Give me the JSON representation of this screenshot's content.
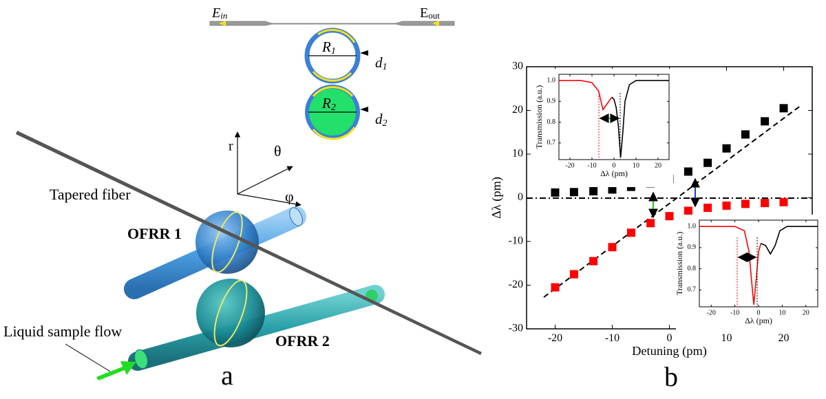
{
  "diagram": {
    "e_in": {
      "main": "E",
      "sub": "in"
    },
    "e_out": {
      "main": "E",
      "sub": "out"
    },
    "r1": {
      "main": "R",
      "sub": "1"
    },
    "d1": {
      "main": "d",
      "sub": "1"
    },
    "r2": {
      "main": "R",
      "sub": "2"
    },
    "d2": {
      "main": "d",
      "sub": "2"
    },
    "axis_r": "r",
    "axis_theta": "θ",
    "axis_phi": "φ",
    "tapered_fiber": "Tapered fiber",
    "ofrr1": "OFRR 1",
    "ofrr2": "OFRR 2",
    "liquid_flow": "Liquid sample flow",
    "panel_a": "a",
    "panel_b": "b"
  },
  "chart_data": [
    {
      "type": "scatter",
      "xlabel": "Detuning (pm)",
      "ylabel": "Δλ (pm)",
      "x": [
        -20,
        -16.7,
        -13.3,
        -10,
        -6.7,
        -3.3,
        0,
        3.3,
        6.7,
        10,
        13.3,
        16.7,
        20
      ],
      "series": [
        {
          "color": "#000000",
          "values": [
            1.2,
            1.3,
            1.5,
            1.9,
            2.5,
            3.3,
            4.3,
            6,
            8,
            11.3,
            14.5,
            17.5,
            20.5
          ]
        },
        {
          "color": "#ff0000",
          "values": [
            -20.5,
            -17.5,
            -14.5,
            -11.3,
            -8,
            -5.8,
            -4.2,
            -3,
            -2.3,
            -1.8,
            -1.4,
            -1.2,
            -1.0
          ]
        }
      ],
      "xlim": [
        -25,
        25
      ],
      "xticks": [
        -20,
        -10,
        0,
        10,
        20
      ],
      "ylim": [
        -30,
        30
      ],
      "yticks": [
        -30,
        -20,
        -10,
        0,
        10,
        20,
        30
      ]
    },
    {
      "type": "line",
      "xlabel": "Δλ (pm)",
      "ylabel": "Transmission (a.u.)",
      "x": [
        -25,
        -15,
        -10,
        -7,
        -5,
        -3,
        -1,
        0,
        1,
        2,
        3,
        4,
        5,
        7,
        10,
        25
      ],
      "series": [
        {
          "color": "#ff0000",
          "values": [
            1.0,
            1.0,
            0.99,
            0.95,
            0.86,
            0.89,
            0.92,
            null,
            null,
            null,
            null,
            null,
            null,
            null,
            null,
            null
          ]
        },
        {
          "color": "#000000",
          "values": [
            null,
            null,
            null,
            null,
            null,
            null,
            0.92,
            0.91,
            0.87,
            0.78,
            0.63,
            0.75,
            0.9,
            0.98,
            1.0,
            1.0
          ]
        }
      ],
      "xlim": [
        -25,
        25
      ],
      "xticks": [
        -20,
        -10,
        0,
        10,
        20
      ],
      "ylim": [
        0.62,
        1.03
      ],
      "yticks": [
        0.7,
        0.8,
        0.9,
        {
          "value": 1,
          "label": "1.0"
        }
      ]
    },
    {
      "type": "line",
      "xlabel": "Δλ (pm)",
      "ylabel": "Transmission (a.u.)",
      "x": [
        -25,
        -10,
        -6,
        -4,
        -3,
        -2,
        -1,
        0,
        1,
        3,
        5,
        7,
        9,
        12,
        25
      ],
      "series": [
        {
          "color": "#ff0000",
          "values": [
            1.0,
            1.0,
            0.98,
            0.88,
            0.75,
            0.63,
            0.75,
            0.88,
            0.92,
            null,
            null,
            null,
            null,
            null,
            null
          ]
        },
        {
          "color": "#000000",
          "values": [
            null,
            null,
            null,
            null,
            null,
            null,
            null,
            null,
            0.92,
            0.91,
            0.87,
            0.91,
            0.98,
            1.0,
            1.0
          ]
        }
      ],
      "xlim": [
        -25,
        25
      ],
      "xticks": [
        -20,
        -10,
        0,
        10,
        20
      ],
      "ylim": [
        0.62,
        1.03
      ],
      "yticks": [
        0.7,
        0.8,
        0.9,
        {
          "value": 1,
          "label": "1.0"
        }
      ]
    }
  ]
}
